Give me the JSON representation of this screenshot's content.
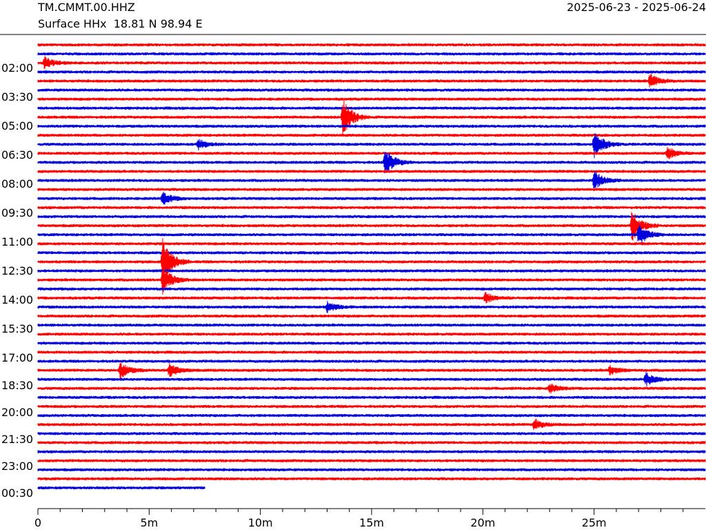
{
  "header": {
    "station": "TM.CMMT.00.HHZ",
    "subtitle": "Surface HHx  18.81 N 98.94 E",
    "date_range": "2025-06-23 - 2025-06-24"
  },
  "colors": {
    "series_a": "#ff0000",
    "series_b": "#0000dd",
    "rule": "#000000"
  },
  "chart_data": {
    "type": "line",
    "title": "TM.CMMT.00.HHZ",
    "xlabel": "",
    "ylabel": "",
    "x_units": "minutes",
    "xlim": [
      0,
      30
    ],
    "x_ticks": [
      0,
      5,
      10,
      15,
      20,
      25
    ],
    "x_tick_labels": [
      "0",
      "5m",
      "10m",
      "15m",
      "20m",
      "25m"
    ],
    "x_minor_tick_step": 1,
    "y_tick_labels": [
      "02:00",
      "03:30",
      "05:00",
      "06:30",
      "08:00",
      "09:30",
      "11:00",
      "12:30",
      "14:00",
      "15:30",
      "17:00",
      "18:30",
      "20:00",
      "21:30",
      "23:00",
      "00:30"
    ],
    "row_count": 50,
    "row_minutes": 30,
    "last_row_end_minute": 7.5,
    "row_colors_alternate": [
      "red",
      "blue"
    ],
    "events": [
      {
        "row": 2,
        "minute": 0.3,
        "amp": 2.0
      },
      {
        "row": 4,
        "minute": 27.5,
        "amp": 2.5
      },
      {
        "row": 8,
        "minute": 13.7,
        "amp": 7.0
      },
      {
        "row": 11,
        "minute": 7.2,
        "amp": 1.8
      },
      {
        "row": 11,
        "minute": 25.0,
        "amp": 5.0
      },
      {
        "row": 12,
        "minute": 28.3,
        "amp": 2.2
      },
      {
        "row": 13,
        "minute": 15.6,
        "amp": 5.0
      },
      {
        "row": 15,
        "minute": 25.0,
        "amp": 3.5
      },
      {
        "row": 17,
        "minute": 5.6,
        "amp": 2.5
      },
      {
        "row": 20,
        "minute": 26.7,
        "amp": 6.0
      },
      {
        "row": 21,
        "minute": 27.0,
        "amp": 4.0
      },
      {
        "row": 24,
        "minute": 5.6,
        "amp": 9.0
      },
      {
        "row": 26,
        "minute": 5.6,
        "amp": 5.0
      },
      {
        "row": 28,
        "minute": 20.1,
        "amp": 1.8
      },
      {
        "row": 29,
        "minute": 13.0,
        "amp": 1.8
      },
      {
        "row": 36,
        "minute": 3.7,
        "amp": 3.0
      },
      {
        "row": 36,
        "minute": 5.9,
        "amp": 2.5
      },
      {
        "row": 36,
        "minute": 25.7,
        "amp": 1.6
      },
      {
        "row": 37,
        "minute": 27.3,
        "amp": 2.5
      },
      {
        "row": 38,
        "minute": 23.0,
        "amp": 1.6
      },
      {
        "row": 42,
        "minute": 22.3,
        "amp": 2.0
      }
    ]
  }
}
